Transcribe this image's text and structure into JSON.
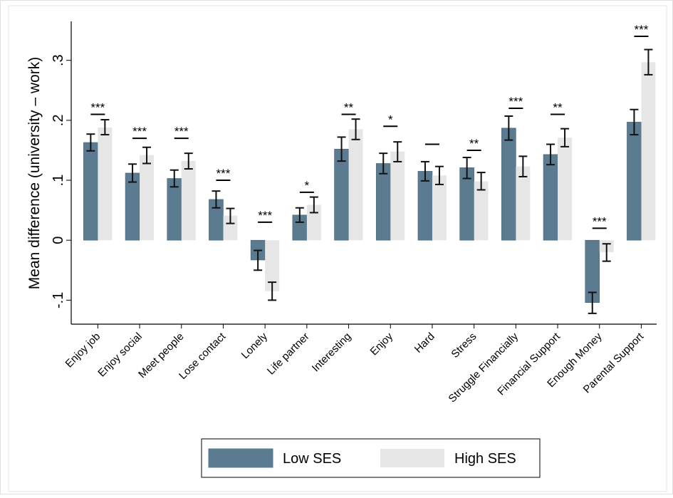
{
  "chart_data": {
    "type": "bar",
    "ylabel": "Mean difference (university – work)",
    "ylim": [
      -0.14,
      0.365
    ],
    "yticks": [
      -0.1,
      0,
      0.1,
      0.2,
      0.3
    ],
    "ytick_labels": [
      "-.1",
      "0",
      ".1",
      ".2",
      ".3"
    ],
    "categories": [
      "Enjoy job",
      "Enjoy social",
      "Meet people",
      "Lose contact",
      "Lonely",
      "Life partner",
      "Interesting",
      "Enjoy",
      "Hard",
      "Stress",
      "Struggle Financially",
      "Financial Support",
      "Enough Money",
      "Parental Support"
    ],
    "series": [
      {
        "name": "Low SES",
        "color": "#5b7b90",
        "values": [
          0.163,
          0.112,
          0.103,
          0.068,
          -0.033,
          0.042,
          0.152,
          0.128,
          0.115,
          0.121,
          0.187,
          0.143,
          -0.104,
          0.197
        ],
        "ci_low": [
          0.149,
          0.097,
          0.089,
          0.054,
          -0.05,
          0.03,
          0.132,
          0.111,
          0.099,
          0.103,
          0.167,
          0.126,
          -0.122,
          0.176
        ],
        "ci_high": [
          0.177,
          0.127,
          0.117,
          0.082,
          -0.017,
          0.054,
          0.172,
          0.145,
          0.131,
          0.138,
          0.207,
          0.16,
          -0.087,
          0.218
        ]
      },
      {
        "name": "High SES",
        "color": "#e6e6e6",
        "values": [
          0.188,
          0.142,
          0.132,
          0.041,
          -0.085,
          0.059,
          0.185,
          0.148,
          0.108,
          0.098,
          0.123,
          0.171,
          -0.02,
          0.297
        ],
        "ci_low": [
          0.176,
          0.128,
          0.119,
          0.028,
          -0.1,
          0.046,
          0.168,
          0.131,
          0.093,
          0.084,
          0.106,
          0.156,
          -0.035,
          0.276
        ],
        "ci_high": [
          0.201,
          0.155,
          0.145,
          0.053,
          -0.07,
          0.072,
          0.202,
          0.164,
          0.123,
          0.113,
          0.14,
          0.186,
          -0.006,
          0.318
        ]
      }
    ],
    "significance": [
      "***",
      "***",
      "***",
      "***",
      "***",
      "*",
      "**",
      "*",
      "",
      "**",
      "***",
      "**",
      "***",
      "***"
    ],
    "bracket_top": [
      0.21,
      0.17,
      0.17,
      0.1,
      0.03,
      0.08,
      0.21,
      0.19,
      0.16,
      0.15,
      0.22,
      0.21,
      0.02,
      0.34
    ],
    "legend_position": "bottom",
    "grid": false
  }
}
